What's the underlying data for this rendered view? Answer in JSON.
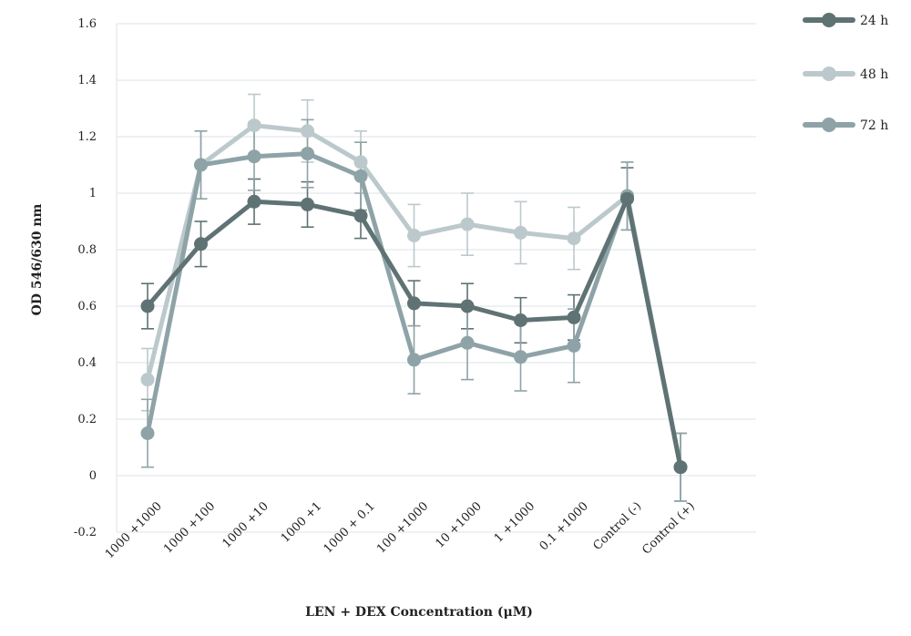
{
  "chart_data": {
    "type": "line",
    "title": "",
    "xlabel": "LEN + DEX Concentration (μM)",
    "ylabel": "OD 546/630 nm",
    "categories": [
      "1000 +1000",
      "1000 +100",
      "1000 +10",
      "1000 +1",
      "1000 + 0.1",
      "100 +1000",
      "10 +1000",
      "1 +1000",
      "0.1 +1000",
      "Control (-)",
      "Control (+)"
    ],
    "ylim": [
      -0.2,
      1.6
    ],
    "yticks": [
      "1.6",
      "1.4",
      "1.2",
      "1",
      "0.8",
      "0.6",
      "0.4",
      "0.2",
      "0",
      "-0.2"
    ],
    "grid": true,
    "legend_position": "top-right",
    "series": [
      {
        "name": "24 h",
        "color": "#5f7274",
        "values": [
          0.6,
          0.82,
          0.97,
          0.96,
          0.92,
          0.61,
          0.6,
          0.55,
          0.56,
          0.98,
          0.03
        ],
        "errors": [
          0.08,
          0.08,
          0.08,
          0.08,
          0.08,
          0.08,
          0.08,
          0.08,
          0.08,
          0.11,
          0.12
        ]
      },
      {
        "name": "48 h",
        "color": "#bcc9cc",
        "values": [
          0.34,
          1.1,
          1.24,
          1.22,
          1.11,
          0.85,
          0.89,
          0.86,
          0.84,
          0.99,
          0.03
        ],
        "errors": [
          0.11,
          0.12,
          0.11,
          0.11,
          0.11,
          0.11,
          0.11,
          0.11,
          0.11,
          0.12,
          0.12
        ]
      },
      {
        "name": "72 h",
        "color": "#8ea3a7",
        "values": [
          0.15,
          1.1,
          1.13,
          1.14,
          1.06,
          0.41,
          0.47,
          0.42,
          0.46,
          0.99,
          0.03
        ],
        "errors": [
          0.12,
          0.12,
          0.12,
          0.12,
          0.12,
          0.12,
          0.13,
          0.12,
          0.13,
          0.12,
          0.12
        ]
      }
    ]
  }
}
